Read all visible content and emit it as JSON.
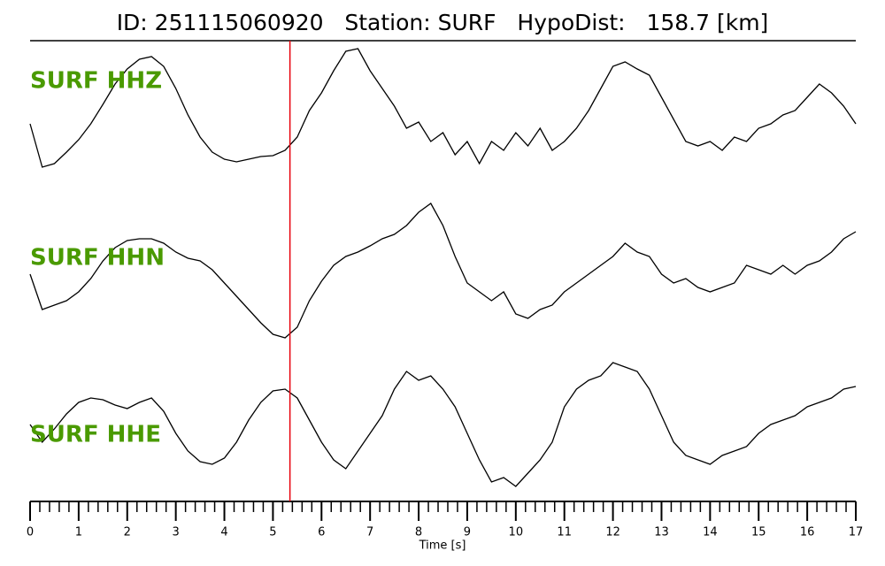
{
  "chart_data": {
    "type": "line",
    "title": "ID: 251115060920   Station: SURF   HypoDist:   158.7 [km]",
    "x_label": "Time [s]",
    "xlim": [
      0,
      17
    ],
    "xticks": [
      0,
      1,
      2,
      3,
      4,
      5,
      6,
      7,
      8,
      9,
      10,
      11,
      12,
      13,
      14,
      15,
      16,
      17
    ],
    "minor_ticks_per_major": 5,
    "pick_time": 5.35,
    "pick_color": "#e8000b",
    "label_color": "#4a9a00",
    "x": [
      0,
      0.25,
      0.5,
      0.75,
      1,
      1.25,
      1.5,
      1.75,
      2,
      2.25,
      2.5,
      2.75,
      3,
      3.25,
      3.5,
      3.75,
      4,
      4.25,
      4.5,
      4.75,
      5,
      5.25,
      5.5,
      5.75,
      6,
      6.25,
      6.5,
      6.75,
      7,
      7.25,
      7.5,
      7.75,
      8,
      8.25,
      8.5,
      8.75,
      9,
      9.25,
      9.5,
      9.75,
      10,
      10.25,
      10.5,
      10.75,
      11,
      11.25,
      11.5,
      11.75,
      12,
      12.25,
      12.5,
      12.75,
      13,
      13.25,
      13.5,
      13.75,
      14,
      14.25,
      14.5,
      14.75,
      15,
      15.25,
      15.5,
      15.75,
      16,
      16.25,
      16.5,
      16.75,
      17
    ],
    "series": [
      {
        "name": "SURF HHZ",
        "color": "#000000",
        "values": [
          60,
          11,
          15,
          28,
          42,
          60,
          82,
          105,
          122,
          133,
          136,
          125,
          100,
          70,
          45,
          28,
          20,
          17,
          20,
          23,
          24,
          30,
          45,
          75,
          95,
          120,
          142,
          145,
          120,
          100,
          80,
          55,
          62,
          40,
          50,
          25,
          40,
          15,
          40,
          30,
          50,
          35,
          55,
          30,
          40,
          55,
          75,
          100,
          125,
          130,
          122,
          115,
          90,
          65,
          40,
          35,
          40,
          30,
          45,
          40,
          55,
          60,
          70,
          75,
          90,
          105,
          95,
          80,
          60
        ]
      },
      {
        "name": "SURF HHN",
        "color": "#000000",
        "values": [
          90,
          50,
          55,
          60,
          70,
          85,
          105,
          120,
          128,
          130,
          130,
          125,
          115,
          108,
          105,
          95,
          80,
          65,
          50,
          35,
          22,
          18,
          30,
          60,
          82,
          100,
          110,
          115,
          122,
          130,
          135,
          145,
          160,
          170,
          145,
          110,
          80,
          70,
          60,
          70,
          45,
          40,
          50,
          55,
          70,
          80,
          90,
          100,
          110,
          125,
          115,
          110,
          90,
          80,
          85,
          75,
          70,
          75,
          80,
          100,
          95,
          90,
          100,
          90,
          100,
          105,
          115,
          130,
          138
        ]
      },
      {
        "name": "SURF HHE",
        "color": "#000000",
        "values": [
          120,
          100,
          115,
          132,
          145,
          150,
          148,
          142,
          138,
          145,
          150,
          135,
          110,
          90,
          78,
          75,
          82,
          100,
          125,
          145,
          158,
          160,
          150,
          125,
          100,
          80,
          70,
          90,
          110,
          130,
          160,
          180,
          170,
          175,
          160,
          140,
          110,
          80,
          55,
          60,
          50,
          65,
          80,
          100,
          140,
          160,
          170,
          175,
          190,
          185,
          180,
          160,
          130,
          100,
          85,
          80,
          75,
          85,
          90,
          95,
          110,
          120,
          125,
          130,
          140,
          145,
          150,
          160,
          163
        ]
      }
    ]
  }
}
